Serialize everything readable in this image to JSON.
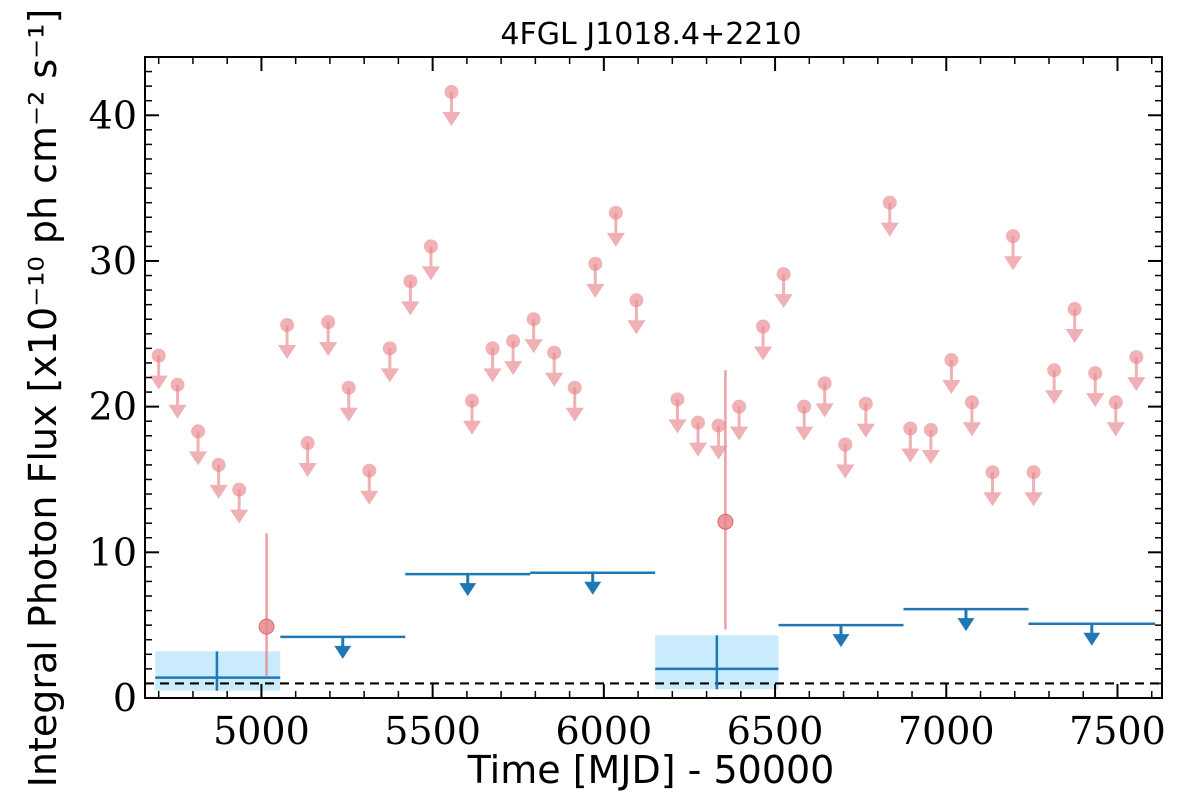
{
  "chart_data": {
    "type": "scatter",
    "title": "4FGL J1018.4+2210",
    "xlabel": "Time [MJD] - 50000",
    "ylabel": "Integral Photon Flux [x10⁻¹⁰ ph cm⁻² s⁻¹]",
    "xlim": [
      4660,
      7630
    ],
    "ylim": [
      0,
      44
    ],
    "xticks": [
      5000,
      5500,
      6000,
      6500,
      7000,
      7500
    ],
    "yticks": [
      0,
      10,
      20,
      30,
      40
    ],
    "grid": false,
    "reference_level": 1.0,
    "colors": {
      "short_bins": "#e8888e",
      "long_bins": "#1f77b4",
      "band": "#c9ebfb",
      "reference": "#000000"
    },
    "series": [
      {
        "bin": "short",
        "upper_limits": {
          "x": [
            4700,
            4755,
            4815,
            4875,
            4935,
            5075,
            5135,
            5195,
            5255,
            5315,
            5375,
            5435,
            5495,
            5555,
            5615,
            5675,
            5735,
            5795,
            5855,
            5915,
            5975,
            6035,
            6095,
            6215,
            6275,
            6335,
            6395,
            6465,
            6525,
            6585,
            6645,
            6705,
            6765,
            6835,
            6895,
            6955,
            7015,
            7075,
            7135,
            7195,
            7255,
            7315,
            7375,
            7435,
            7495,
            7555
          ],
          "y": [
            23.5,
            21.5,
            18.3,
            16.0,
            14.3,
            25.6,
            17.5,
            25.8,
            21.3,
            15.6,
            24.0,
            28.6,
            31.0,
            41.6,
            20.4,
            24.0,
            24.5,
            26.0,
            23.7,
            21.3,
            29.8,
            33.3,
            27.3,
            20.5,
            18.9,
            18.7,
            20.0,
            25.5,
            29.1,
            20.0,
            21.6,
            17.4,
            20.2,
            34.0,
            18.5,
            18.4,
            23.2,
            20.3,
            15.5,
            31.7,
            15.5,
            22.5,
            26.7,
            22.3,
            20.3,
            23.4
          ]
        },
        "detections": {
          "x": [
            5015,
            6355
          ],
          "y": [
            4.9,
            12.1
          ],
          "y_low": [
            1.5,
            4.7
          ],
          "y_high": [
            11.3,
            22.5
          ]
        }
      },
      {
        "bin": "long",
        "upper_limits": {
          "x_start": [
            5055,
            5420,
            5785,
            6510,
            6875,
            7240
          ],
          "x_end": [
            5420,
            5785,
            6150,
            6875,
            7240,
            7610
          ],
          "y": [
            4.2,
            8.5,
            8.6,
            5.0,
            6.1,
            5.1
          ]
        },
        "detections": {
          "x": [
            4870,
            6330
          ],
          "x_start": [
            4690,
            6150
          ],
          "x_end": [
            5055,
            6510
          ],
          "y": [
            1.4,
            2.0
          ],
          "y_low": [
            0.5,
            0.6
          ],
          "y_high": [
            3.2,
            4.3
          ]
        }
      }
    ]
  }
}
